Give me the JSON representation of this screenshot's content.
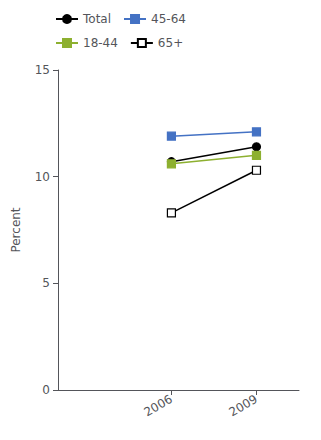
{
  "chart_data": {
    "type": "line",
    "ylabel": "Percent",
    "x": [
      2006,
      2009
    ],
    "series": [
      {
        "name": "Total",
        "color": "#000000",
        "marker": "circle",
        "values": [
          10.7,
          11.4
        ]
      },
      {
        "name": "45-64",
        "color": "#4472c4",
        "marker": "square",
        "values": [
          11.9,
          12.1
        ]
      },
      {
        "name": "18-44",
        "color": "#8db030",
        "marker": "square",
        "values": [
          10.6,
          11.0
        ]
      },
      {
        "name": "65+",
        "color": "#000000",
        "marker": "open_square",
        "values": [
          8.3,
          10.3
        ]
      }
    ],
    "xlim": [
      2002.0,
      2010.5
    ],
    "xticks": [
      2006,
      2009
    ],
    "ylim": [
      0,
      15
    ],
    "yticks": [
      0,
      5,
      10,
      15
    ],
    "grid": false,
    "legend": "upper left"
  }
}
